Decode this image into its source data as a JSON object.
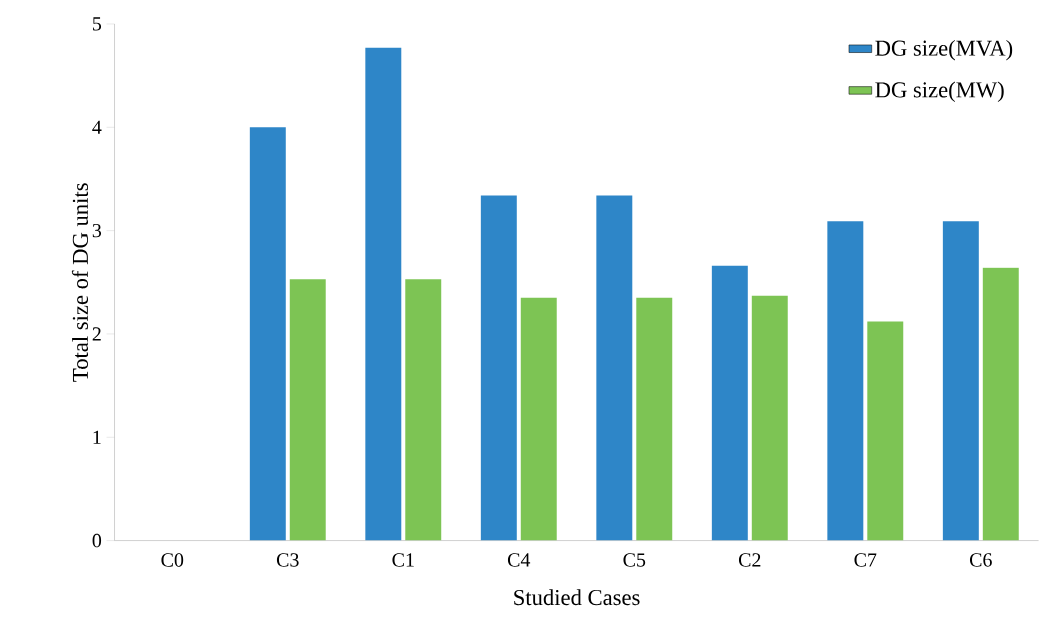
{
  "chart_data": {
    "type": "bar",
    "xlabel": "Studied Cases",
    "ylabel": "Total size of DG units",
    "categories": [
      "C0",
      "C3",
      "C1",
      "C4",
      "C5",
      "C2",
      "C7",
      "C6"
    ],
    "series": [
      {
        "name": "DG size(MVA)",
        "color": "#2e86c8",
        "values": [
          0,
          4.0,
          4.77,
          3.34,
          3.34,
          2.66,
          3.09,
          3.09
        ]
      },
      {
        "name": "DG size(MW)",
        "color": "#7dc454",
        "values": [
          0,
          2.53,
          2.53,
          2.35,
          2.35,
          2.37,
          2.12,
          2.64
        ]
      }
    ],
    "ylim": [
      0,
      5
    ],
    "yticks": [
      0,
      1,
      2,
      3,
      4,
      5
    ],
    "legend": "top right"
  }
}
